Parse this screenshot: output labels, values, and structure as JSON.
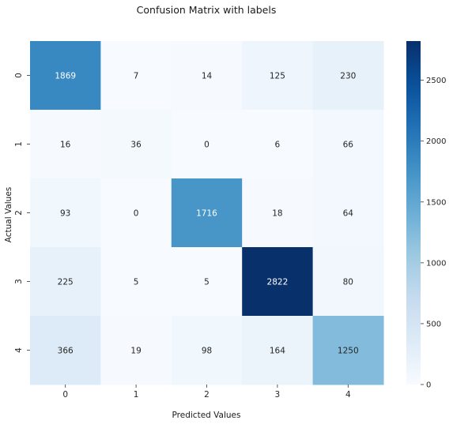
{
  "chart_data": {
    "type": "heatmap",
    "title": "Confusion Matrix with labels",
    "xlabel": "Predicted Values",
    "ylabel": "Actual Values",
    "x_categories": [
      "0",
      "1",
      "2",
      "3",
      "4"
    ],
    "y_categories": [
      "0",
      "1",
      "2",
      "3",
      "4"
    ],
    "values": [
      [
        1869,
        7,
        14,
        125,
        230
      ],
      [
        16,
        36,
        0,
        6,
        66
      ],
      [
        93,
        0,
        1716,
        18,
        64
      ],
      [
        225,
        5,
        5,
        2822,
        80
      ],
      [
        366,
        19,
        98,
        164,
        1250
      ]
    ],
    "colormap": "Blues",
    "colorbar": {
      "range": [
        0,
        2822
      ],
      "ticks": [
        0,
        500,
        1000,
        1500,
        2000,
        2500
      ]
    },
    "annotated": true
  }
}
